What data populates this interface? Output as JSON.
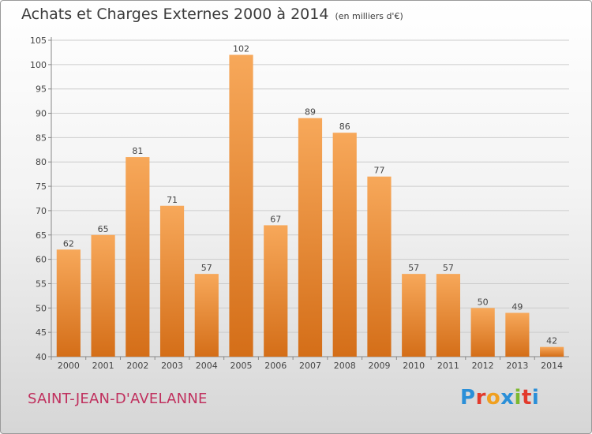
{
  "header": {
    "title": "Achats et Charges Externes 2000 à 2014",
    "unit": "(en milliers d'€)"
  },
  "footer": {
    "commune": "SAINT-JEAN-D'AVELANNE",
    "logo": {
      "letters": [
        "P",
        "r",
        "o",
        "x",
        "i",
        "t",
        "i"
      ],
      "colors": [
        "#2a8fd8",
        "#e23a2c",
        "#f0a020",
        "#2a8fd8",
        "#7cb82f",
        "#e23a2c",
        "#2a8fd8"
      ]
    }
  },
  "chart_data": {
    "type": "bar",
    "title": "Achats et Charges Externes 2000 à 2014",
    "subtitle": "(en milliers d'€)",
    "xlabel": "",
    "ylabel": "",
    "categories": [
      "2000",
      "2001",
      "2002",
      "2003",
      "2004",
      "2005",
      "2006",
      "2007",
      "2008",
      "2009",
      "2010",
      "2011",
      "2012",
      "2013",
      "2014"
    ],
    "values": [
      62,
      65,
      81,
      71,
      57,
      102,
      67,
      89,
      86,
      77,
      57,
      57,
      50,
      49,
      42
    ],
    "ylim": [
      40,
      105
    ],
    "yticks": [
      40,
      45,
      50,
      55,
      60,
      65,
      70,
      75,
      80,
      85,
      90,
      95,
      100,
      105
    ],
    "grid": true,
    "colors": {
      "bar_light": "#f7a85a",
      "bar_dark": "#d46e18",
      "grid": "#cccccc",
      "axis": "#888888"
    }
  }
}
